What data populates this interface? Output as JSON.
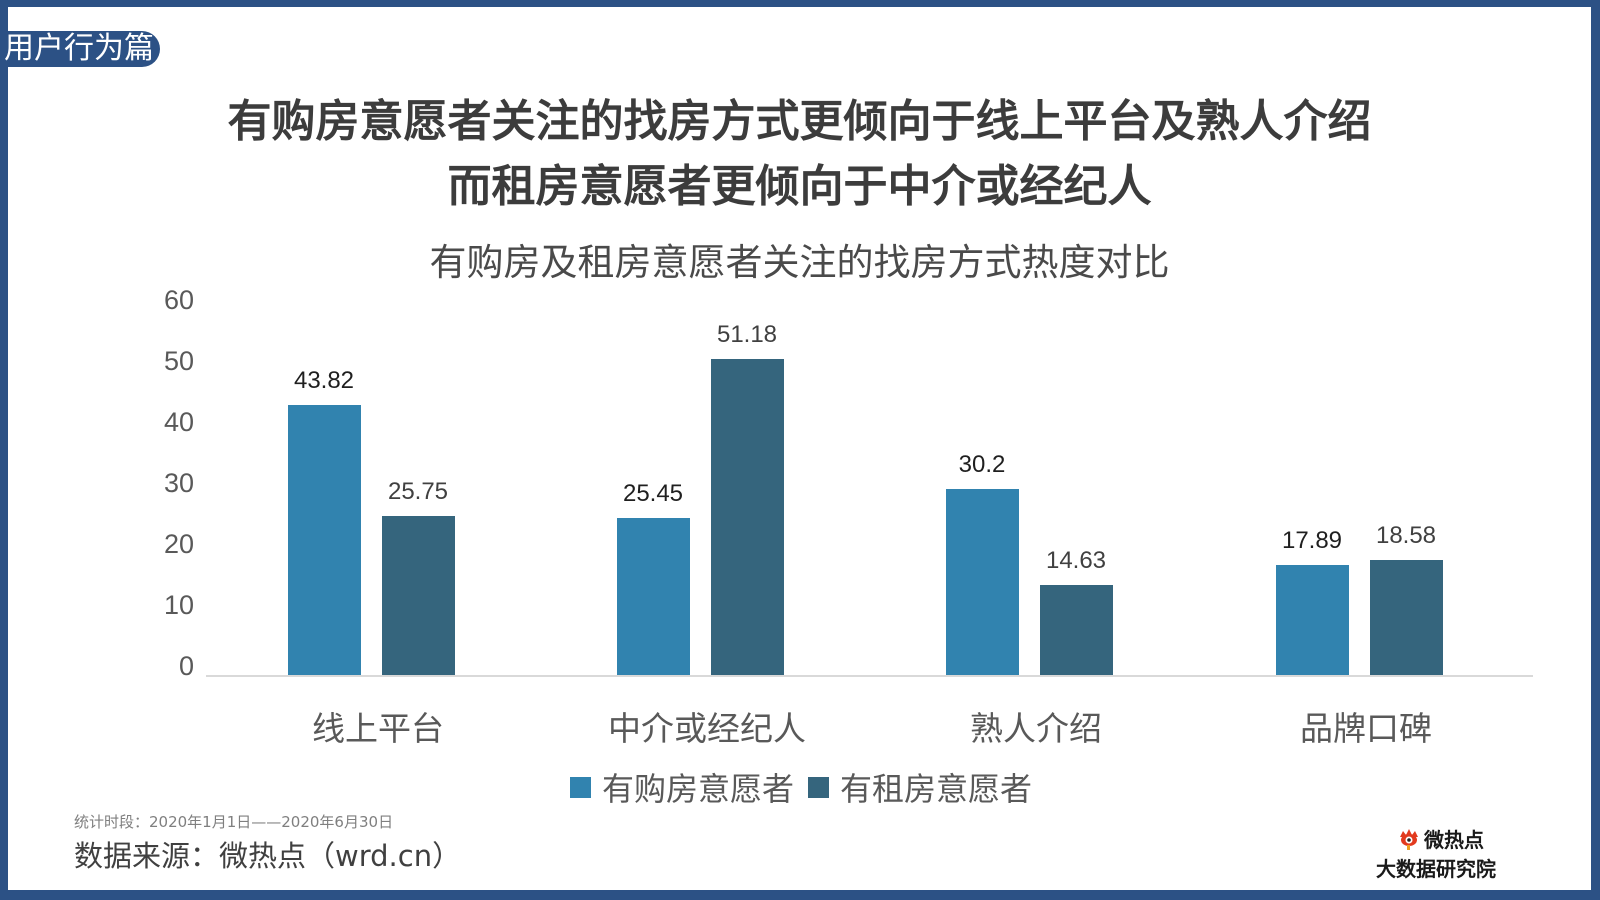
{
  "section_tag": "用户行为篇",
  "headline": {
    "line1": "有购房意愿者关注的找房方式更倾向于线上平台及熟人介绍",
    "line2": "而租房意愿者更倾向于中介或经纪人"
  },
  "chart_data": {
    "type": "bar",
    "title": "有购房及租房意愿者关注的找房方式热度对比",
    "xlabel": "",
    "ylabel": "",
    "ylim": [
      0,
      60
    ],
    "yticks": [
      "60",
      "50",
      "40",
      "30",
      "20",
      "10",
      "0"
    ],
    "grid": false,
    "legend_position": "bottom",
    "categories": [
      "线上平台",
      "中介或经纪人",
      "熟人介绍",
      "品牌口碑"
    ],
    "series": [
      {
        "name": "有购房意愿者",
        "color": "#3183af",
        "values": [
          43.82,
          25.45,
          30.2,
          17.89
        ],
        "labels": [
          "43.82",
          "25.45",
          "30.2",
          "17.89"
        ]
      },
      {
        "name": "有租房意愿者",
        "color": "#35657d",
        "values": [
          25.75,
          51.18,
          14.63,
          18.58
        ],
        "labels": [
          "25.75",
          "51.18",
          "14.63",
          "18.58"
        ]
      }
    ]
  },
  "footer": {
    "period": "统计时段：2020年1月1日——2020年6月30日",
    "source": "数据来源：微热点（wrd.cn）"
  },
  "logo": {
    "icon": "eye-logo-icon",
    "line1": "微热点",
    "line2": "大数据研究院"
  },
  "colors": {
    "frame": "#2c5185",
    "buy": "#3183af",
    "rent": "#35657d"
  }
}
